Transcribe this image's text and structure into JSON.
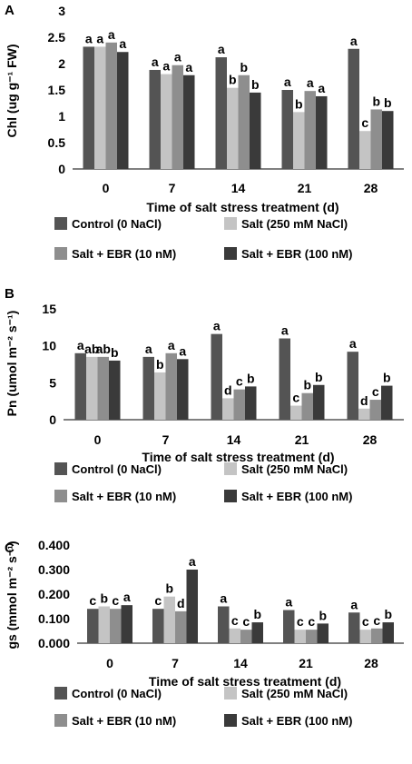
{
  "chart_data": [
    {
      "type": "bar",
      "panel_label": "A",
      "categories": [
        "0",
        "7",
        "14",
        "21",
        "28"
      ],
      "xlabel": "Time of salt stress treatment (d)",
      "ylabel": "Chl (ug g⁻¹ FW)",
      "ylim": [
        0,
        3
      ],
      "yticks": [
        "0",
        "0.5",
        "1",
        "1.5",
        "2",
        "2.5",
        "3"
      ],
      "tick_values": [
        0,
        0.5,
        1,
        1.5,
        2,
        2.5,
        3
      ],
      "series": [
        {
          "name": "Control (0 NaCl)",
          "color": "#545454",
          "values": [
            2.32,
            1.88,
            2.12,
            1.5,
            2.28
          ],
          "labels": [
            "a",
            "a",
            "a",
            "a",
            "a"
          ]
        },
        {
          "name": "Salt (250 mM NaCl)",
          "color": "#c4c4c4",
          "values": [
            2.32,
            1.8,
            1.54,
            1.08,
            0.72
          ],
          "labels": [
            "a",
            "a",
            "b",
            "b",
            "c"
          ]
        },
        {
          "name": "Salt + EBR (10 nM)",
          "color": "#8e8e8e",
          "values": [
            2.4,
            1.97,
            1.78,
            1.48,
            1.13
          ],
          "labels": [
            "a",
            "a",
            "b",
            "a",
            "b"
          ]
        },
        {
          "name": "Salt + EBR (100 nM)",
          "color": "#3a3a3a",
          "values": [
            2.22,
            1.78,
            1.45,
            1.38,
            1.1
          ],
          "labels": [
            "a",
            "a",
            "b",
            "a",
            "b"
          ]
        }
      ],
      "legend_position": "bottom"
    },
    {
      "type": "bar",
      "panel_label": "B",
      "categories": [
        "0",
        "7",
        "14",
        "21",
        "28"
      ],
      "xlabel": "Time of salt stress treatment (d)",
      "ylabel": "Pn (umol m⁻² s⁻¹)",
      "ylim": [
        0,
        15
      ],
      "yticks": [
        "0",
        "5",
        "10",
        "15"
      ],
      "tick_values": [
        0,
        5,
        10,
        15
      ],
      "series": [
        {
          "name": "Control (0 NaCl)",
          "color": "#545454",
          "values": [
            9.0,
            8.5,
            11.6,
            11.0,
            9.2
          ],
          "labels": [
            "a",
            "a",
            "a",
            "a",
            "a"
          ]
        },
        {
          "name": "Salt (250 mM NaCl)",
          "color": "#c4c4c4",
          "values": [
            8.5,
            6.4,
            2.9,
            1.9,
            1.5
          ],
          "labels": [
            "ab",
            "b",
            "d",
            "c",
            "d"
          ]
        },
        {
          "name": "Salt + EBR (10 nM)",
          "color": "#8e8e8e",
          "values": [
            8.5,
            9.0,
            4.1,
            3.6,
            2.7
          ],
          "labels": [
            "ab",
            "a",
            "c",
            "b",
            "c"
          ]
        },
        {
          "name": "Salt + EBR (100 nM)",
          "color": "#3a3a3a",
          "values": [
            8.0,
            8.2,
            4.5,
            4.7,
            4.6
          ],
          "labels": [
            "b",
            "a",
            "b",
            "b",
            "b"
          ]
        }
      ],
      "legend_position": "bottom"
    },
    {
      "type": "bar",
      "panel_label": "C",
      "categories": [
        "0",
        "7",
        "14",
        "21",
        "28"
      ],
      "xlabel": "Time of salt stress treatment (d)",
      "ylabel": "gs (mmol m⁻² s⁻¹)",
      "ylim": [
        0,
        0.4
      ],
      "yticks": [
        "0.000",
        "0.100",
        "0.200",
        "0.300",
        "0.400"
      ],
      "tick_values": [
        0,
        0.1,
        0.2,
        0.3,
        0.4
      ],
      "series": [
        {
          "name": "Control (0 NaCl)",
          "color": "#545454",
          "values": [
            0.14,
            0.14,
            0.15,
            0.135,
            0.125
          ],
          "labels": [
            "c",
            "c",
            "a",
            "a",
            "a"
          ]
        },
        {
          "name": "Salt (250 mM NaCl)",
          "color": "#c4c4c4",
          "values": [
            0.15,
            0.19,
            0.06,
            0.055,
            0.055
          ],
          "labels": [
            "b",
            "b",
            "c",
            "c",
            "c"
          ]
        },
        {
          "name": "Salt + EBR (10 nM)",
          "color": "#8e8e8e",
          "values": [
            0.14,
            0.13,
            0.055,
            0.055,
            0.06
          ],
          "labels": [
            "c",
            "d",
            "c",
            "c",
            "c"
          ]
        },
        {
          "name": "Salt + EBR (100 nM)",
          "color": "#3a3a3a",
          "values": [
            0.155,
            0.3,
            0.085,
            0.08,
            0.085
          ],
          "labels": [
            "a",
            "a",
            "b",
            "b",
            "b"
          ]
        }
      ],
      "legend_position": "bottom"
    }
  ]
}
